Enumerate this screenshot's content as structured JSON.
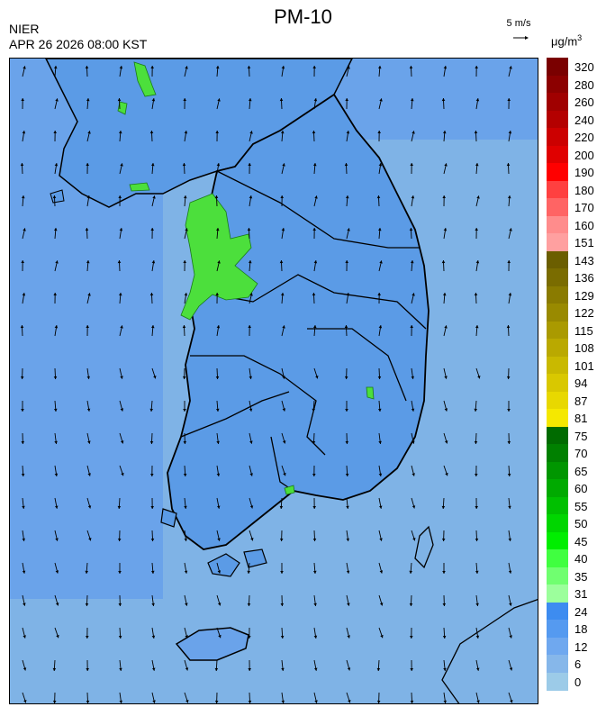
{
  "header": {
    "title": "PM-10",
    "agency": "NIER",
    "datetime": "APR 26 2026 08:00 KST",
    "wind_reference": "5 m/s",
    "unit_base": "μg/m",
    "unit_exp": "3"
  },
  "legend": {
    "labels": [
      "320",
      "280",
      "260",
      "240",
      "220",
      "200",
      "190",
      "180",
      "170",
      "160",
      "151",
      "143",
      "136",
      "129",
      "122",
      "115",
      "108",
      "101",
      "94",
      "87",
      "81",
      "75",
      "70",
      "65",
      "60",
      "55",
      "50",
      "45",
      "40",
      "35",
      "31",
      "24",
      "18",
      "12",
      "6",
      "0"
    ],
    "colors": [
      "#7a0000",
      "#8c0000",
      "#a00000",
      "#b40000",
      "#cc0000",
      "#e00000",
      "#ff0000",
      "#ff4040",
      "#ff6464",
      "#ff8c8c",
      "#ffa0a0",
      "#6b5e00",
      "#7a6c00",
      "#8a7b00",
      "#998a00",
      "#aa9a00",
      "#baa900",
      "#c9b900",
      "#d9c800",
      "#e8d800",
      "#f5e800",
      "#006b00",
      "#008000",
      "#009600",
      "#00aa00",
      "#00c000",
      "#00d600",
      "#00ee00",
      "#40ff40",
      "#70ff70",
      "#9cff9c",
      "#3d8cf0",
      "#559af0",
      "#6fa8ef",
      "#86b7ea",
      "#9ccbe8"
    ]
  },
  "map": {
    "sea_color": "#7fb3e6",
    "land_color": "#5b9be6",
    "high_color": "#4cdf3c"
  }
}
